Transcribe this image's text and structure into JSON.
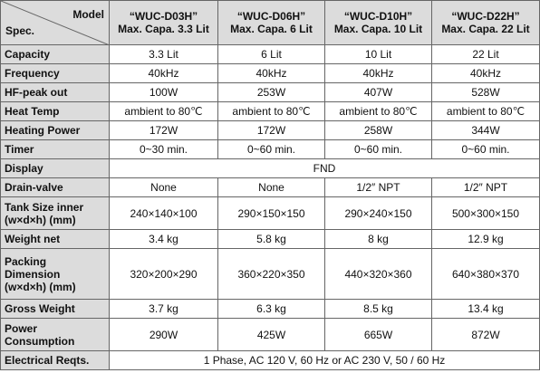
{
  "header": {
    "spec": "Spec.",
    "model": "Model",
    "columns": [
      {
        "model": "“WUC-D03H”",
        "capacity": "Max. Capa. 3.3 Lit"
      },
      {
        "model": "“WUC-D06H”",
        "capacity": "Max. Capa. 6 Lit"
      },
      {
        "model": "“WUC-D10H”",
        "capacity": "Max. Capa. 10 Lit"
      },
      {
        "model": "“WUC-D22H”",
        "capacity": "Max. Capa. 22 Lit"
      }
    ]
  },
  "rows": [
    {
      "label": [
        "Capacity"
      ],
      "values": [
        "3.3 Lit",
        "6 Lit",
        "10 Lit",
        "22 Lit"
      ]
    },
    {
      "label": [
        "Frequency"
      ],
      "values": [
        "40kHz",
        "40kHz",
        "40kHz",
        "40kHz"
      ]
    },
    {
      "label": [
        "HF-peak out"
      ],
      "values": [
        "100W",
        "253W",
        "407W",
        "528W"
      ]
    },
    {
      "label": [
        "Heat Temp"
      ],
      "values": [
        "ambient to 80℃",
        "ambient to 80℃",
        "ambient to 80℃",
        "ambient to 80℃"
      ]
    },
    {
      "label": [
        "Heating Power"
      ],
      "values": [
        "172W",
        "172W",
        "258W",
        "344W"
      ]
    },
    {
      "label": [
        "Timer"
      ],
      "values": [
        "0~30 min.",
        "0~60 min.",
        "0~60 min.",
        "0~60 min."
      ]
    },
    {
      "label": [
        "Display"
      ],
      "value": "FND"
    },
    {
      "label": [
        "Drain-valve"
      ],
      "values": [
        "None",
        "None",
        "1/2″ NPT",
        "1/2″ NPT"
      ]
    },
    {
      "label": [
        "Tank Size inner",
        "(w×d×h) (mm)"
      ],
      "values": [
        "240×140×100",
        "290×150×150",
        "290×240×150",
        "500×300×150"
      ]
    },
    {
      "label": [
        "Weight net"
      ],
      "values": [
        "3.4 kg",
        "5.8 kg",
        "8 kg",
        "12.9 kg"
      ]
    },
    {
      "label": [
        "Packing",
        "Dimension",
        "(w×d×h) (mm)"
      ],
      "values": [
        "320×200×290",
        "360×220×350",
        "440×320×360",
        "640×380×370"
      ]
    },
    {
      "label": [
        "Gross Weight"
      ],
      "values": [
        "3.7 kg",
        "6.3 kg",
        "8.5 kg",
        "13.4 kg"
      ]
    },
    {
      "label": [
        "Power",
        "Consumption"
      ],
      "values": [
        "290W",
        "425W",
        "665W",
        "872W"
      ]
    },
    {
      "label": [
        "Electrical Reqts."
      ],
      "value": "1 Phase, AC 120 V, 60 Hz or AC 230 V, 50 / 60 Hz"
    }
  ]
}
